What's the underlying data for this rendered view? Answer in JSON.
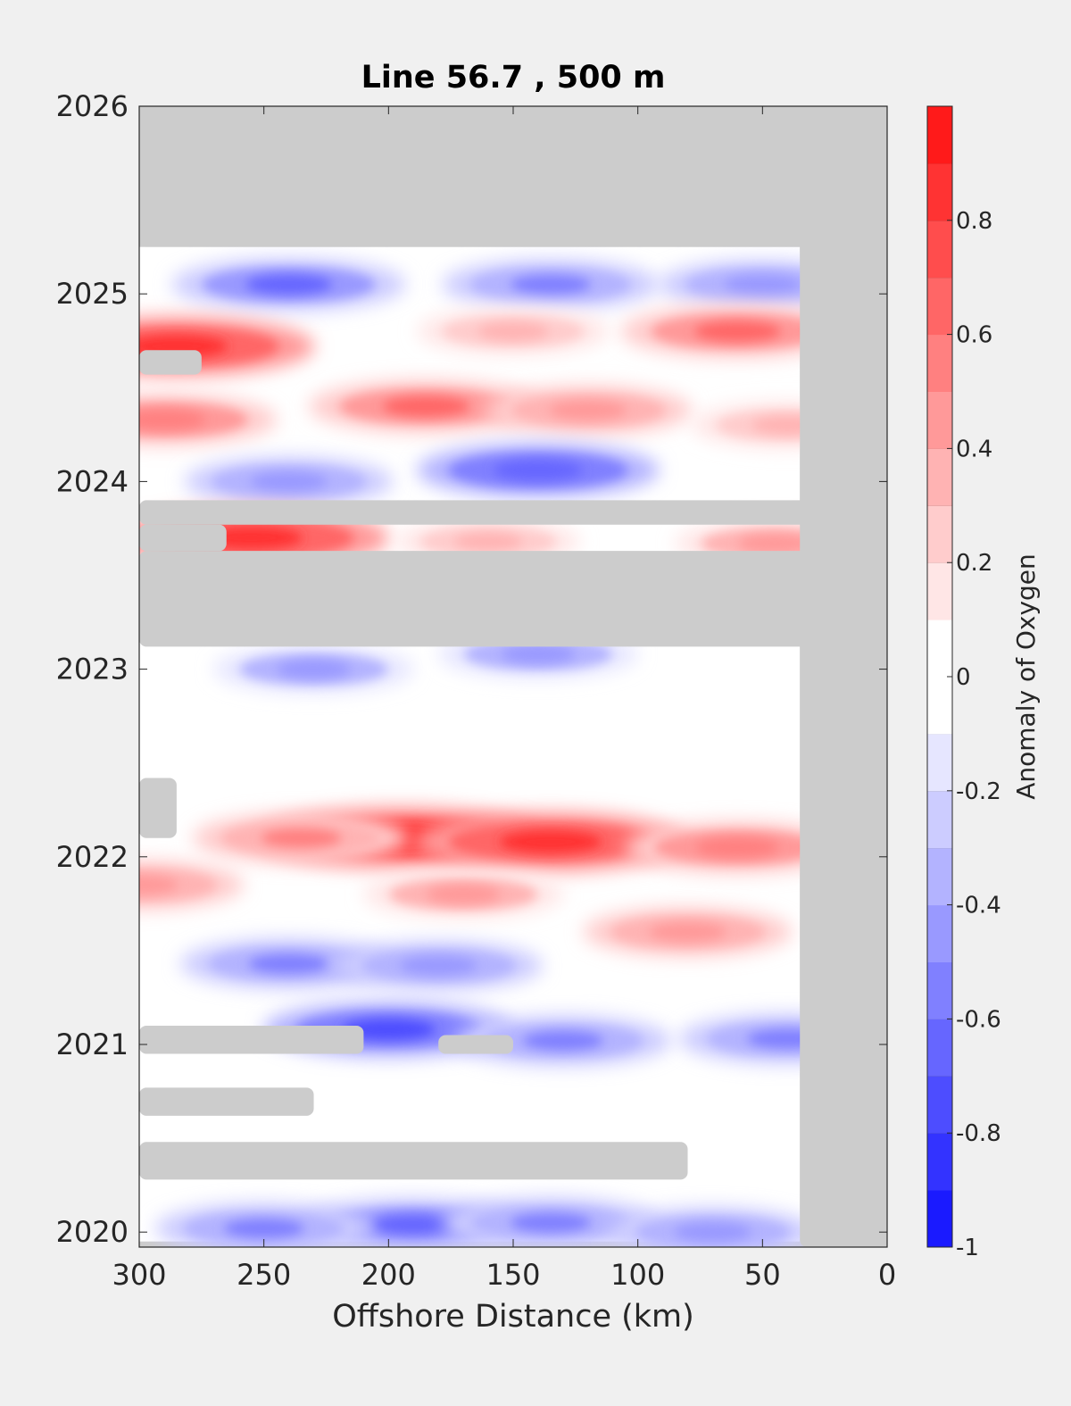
{
  "chart_data": {
    "type": "heatmap",
    "title": "Line 56.7 , 500 m",
    "xlabel": "Offshore Distance (km)",
    "ylabel": "",
    "colorbar_label": "Anomaly of Oxygen",
    "x_reversed": true,
    "xlim": [
      300,
      0
    ],
    "ylim": [
      2019.92,
      2026
    ],
    "x_ticks": [
      300,
      250,
      200,
      150,
      100,
      50,
      0
    ],
    "y_ticks": [
      2020,
      2021,
      2022,
      2023,
      2024,
      2025,
      2026
    ],
    "colorbar": {
      "range": [
        -1,
        1
      ],
      "levels": [
        -1,
        -0.9,
        -0.8,
        -0.7,
        -0.6,
        -0.5,
        -0.4,
        -0.3,
        -0.2,
        -0.1,
        0,
        0.1,
        0.2,
        0.3,
        0.4,
        0.5,
        0.6,
        0.7,
        0.8,
        0.9,
        1.0
      ],
      "ticks": [
        -1,
        -0.8,
        -0.6,
        -0.4,
        -0.2,
        0,
        0.2,
        0.4,
        0.6,
        0.8
      ],
      "tick_labels": [
        "-1",
        "-0.8",
        "-0.6",
        "-0.4",
        "-0.2",
        "0",
        "0.2",
        "0.4",
        "0.6",
        "0.8"
      ],
      "colors": [
        "#0000ff",
        "#1a1aff",
        "#3333ff",
        "#4d4dff",
        "#6666ff",
        "#8080ff",
        "#9999ff",
        "#b3b3ff",
        "#ccccff",
        "#e6e6ff",
        "#ffffff",
        "#ffffff",
        "#ffe6e6",
        "#ffcccc",
        "#ffb3b3",
        "#ff9999",
        "#ff8080",
        "#ff6666",
        "#ff4d4d",
        "#ff3333",
        "#ff1a1a",
        "#ff0000"
      ]
    },
    "no_data_color": "#cccccc",
    "data_extent": {
      "x": [
        35,
        300
      ],
      "y": [
        2019.95,
        2025.25
      ]
    },
    "no_data_regions": [
      {
        "x": [
          0,
          35
        ],
        "y": [
          2019.92,
          2026
        ]
      },
      {
        "x": [
          0,
          300
        ],
        "y": [
          2025.25,
          2026
        ]
      },
      {
        "x": [
          0,
          300
        ],
        "y": [
          2023.12,
          2023.63
        ]
      },
      {
        "x": [
          0,
          300
        ],
        "y": [
          2023.77,
          2023.9
        ]
      },
      {
        "x": [
          265,
          300
        ],
        "y": [
          2023.63,
          2023.77
        ]
      },
      {
        "x": [
          275,
          300
        ],
        "y": [
          2024.57,
          2024.7
        ]
      },
      {
        "x": [
          285,
          300
        ],
        "y": [
          2022.1,
          2022.42
        ]
      },
      {
        "x": [
          210,
          300
        ],
        "y": [
          2020.95,
          2021.1
        ]
      },
      {
        "x": [
          150,
          180
        ],
        "y": [
          2020.95,
          2021.05
        ]
      },
      {
        "x": [
          230,
          300
        ],
        "y": [
          2020.62,
          2020.77
        ]
      },
      {
        "x": [
          80,
          300
        ],
        "y": [
          2020.28,
          2020.48
        ]
      }
    ],
    "anomaly_features": [
      {
        "x": 240,
        "y": 2025.05,
        "value": -0.6
      },
      {
        "x": 135,
        "y": 2025.05,
        "value": -0.5
      },
      {
        "x": 50,
        "y": 2025.05,
        "value": -0.45
      },
      {
        "x": 285,
        "y": 2024.72,
        "value": 0.85
      },
      {
        "x": 60,
        "y": 2024.8,
        "value": 0.6
      },
      {
        "x": 150,
        "y": 2024.8,
        "value": 0.35
      },
      {
        "x": 290,
        "y": 2024.33,
        "value": 0.55
      },
      {
        "x": 185,
        "y": 2024.4,
        "value": 0.6
      },
      {
        "x": 120,
        "y": 2024.38,
        "value": 0.45
      },
      {
        "x": 40,
        "y": 2024.3,
        "value": 0.35
      },
      {
        "x": 140,
        "y": 2024.06,
        "value": -0.65
      },
      {
        "x": 240,
        "y": 2024.0,
        "value": -0.45
      },
      {
        "x": 255,
        "y": 2023.7,
        "value": 0.85
      },
      {
        "x": 160,
        "y": 2023.68,
        "value": 0.3
      },
      {
        "x": 45,
        "y": 2023.67,
        "value": 0.4
      },
      {
        "x": 230,
        "y": 2023.0,
        "value": -0.4
      },
      {
        "x": 140,
        "y": 2023.08,
        "value": -0.4
      },
      {
        "x": 195,
        "y": 2022.1,
        "value": 0.95
      },
      {
        "x": 135,
        "y": 2022.08,
        "value": 0.85
      },
      {
        "x": 235,
        "y": 2022.1,
        "value": 0.5
      },
      {
        "x": 60,
        "y": 2022.05,
        "value": 0.55
      },
      {
        "x": 300,
        "y": 2021.85,
        "value": 0.45
      },
      {
        "x": 170,
        "y": 2021.8,
        "value": 0.4
      },
      {
        "x": 80,
        "y": 2021.6,
        "value": 0.45
      },
      {
        "x": 240,
        "y": 2021.43,
        "value": -0.5
      },
      {
        "x": 180,
        "y": 2021.42,
        "value": -0.45
      },
      {
        "x": 200,
        "y": 2021.08,
        "value": -0.7
      },
      {
        "x": 130,
        "y": 2021.02,
        "value": -0.5
      },
      {
        "x": 40,
        "y": 2021.03,
        "value": -0.5
      },
      {
        "x": 190,
        "y": 2020.04,
        "value": -0.6
      },
      {
        "x": 250,
        "y": 2020.02,
        "value": -0.5
      },
      {
        "x": 135,
        "y": 2020.05,
        "value": -0.5
      },
      {
        "x": 70,
        "y": 2020.0,
        "value": -0.45
      }
    ]
  }
}
